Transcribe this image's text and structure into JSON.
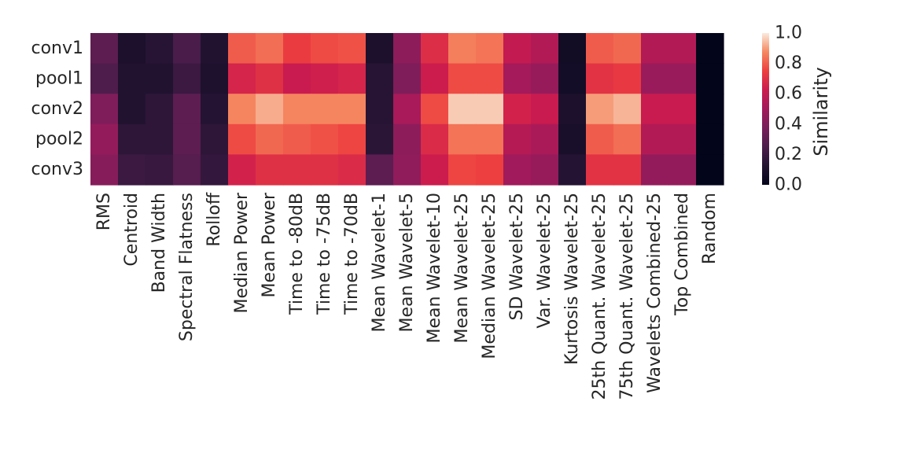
{
  "chart_data": {
    "type": "heatmap",
    "title": "",
    "xlabel": "",
    "ylabel": "",
    "rows": [
      "conv1",
      "pool1",
      "conv2",
      "pool2",
      "conv3"
    ],
    "columns": [
      "RMS",
      "Centroid",
      "Band Width",
      "Spectral Flatness",
      "Rolloff",
      "Median Power",
      "Mean Power",
      "Time to -80dB",
      "Time to -75dB",
      "Time to -70dB",
      "Mean Wavelet-1",
      "Mean Wavelet-5",
      "Mean Wavelet-10",
      "Mean Wavelet-25",
      "Median Wavelet-25",
      "SD Wavelet-25",
      "Var. Wavelet-25",
      "Kurtosis Wavelet-25",
      "25th Quant. Wavelet-25",
      "75th Quant. Wavelet-25",
      "Wavelets Combined-25",
      "Top Combined",
      "Random"
    ],
    "values": [
      [
        0.3,
        0.1,
        0.14,
        0.24,
        0.12,
        0.8,
        0.83,
        0.74,
        0.77,
        0.78,
        0.1,
        0.44,
        0.69,
        0.86,
        0.84,
        0.6,
        0.55,
        0.06,
        0.8,
        0.82,
        0.55,
        0.55,
        0.0
      ],
      [
        0.26,
        0.12,
        0.12,
        0.2,
        0.11,
        0.66,
        0.7,
        0.62,
        0.64,
        0.66,
        0.14,
        0.4,
        0.63,
        0.77,
        0.77,
        0.51,
        0.47,
        0.07,
        0.71,
        0.73,
        0.48,
        0.48,
        0.0
      ],
      [
        0.4,
        0.12,
        0.16,
        0.3,
        0.13,
        0.87,
        0.92,
        0.87,
        0.87,
        0.87,
        0.14,
        0.52,
        0.77,
        0.96,
        0.96,
        0.65,
        0.62,
        0.1,
        0.9,
        0.93,
        0.62,
        0.62,
        0.0
      ],
      [
        0.46,
        0.16,
        0.16,
        0.3,
        0.16,
        0.77,
        0.82,
        0.8,
        0.78,
        0.76,
        0.15,
        0.44,
        0.68,
        0.84,
        0.84,
        0.56,
        0.53,
        0.09,
        0.8,
        0.83,
        0.55,
        0.55,
        0.0
      ],
      [
        0.42,
        0.2,
        0.19,
        0.28,
        0.18,
        0.65,
        0.7,
        0.7,
        0.7,
        0.68,
        0.3,
        0.45,
        0.63,
        0.76,
        0.75,
        0.5,
        0.47,
        0.13,
        0.71,
        0.71,
        0.46,
        0.46,
        0.0
      ]
    ],
    "colorbar": {
      "label": "Similarity",
      "vmin": 0.0,
      "vmax": 1.0,
      "ticks": [
        "0.0",
        "0.2",
        "0.4",
        "0.6",
        "0.8",
        "1.0"
      ]
    },
    "colormap": "rocket",
    "grid": false
  }
}
